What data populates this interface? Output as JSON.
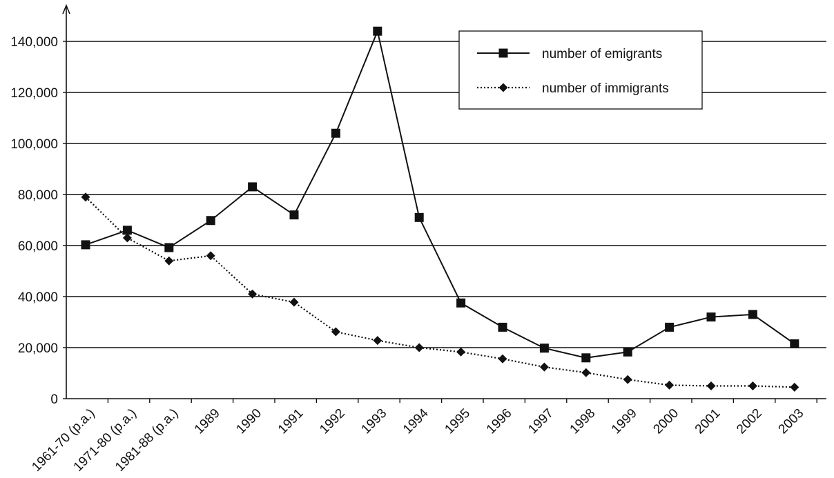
{
  "chart_data": {
    "type": "line",
    "title": "",
    "xlabel": "",
    "ylabel": "",
    "categories": [
      "1961-70 (p.a.)",
      "1971-80 (p.a.)",
      "1981-88 (p.a.)",
      "1989",
      "1990",
      "1991",
      "1992",
      "1993",
      "1994",
      "1995",
      "1996",
      "1997",
      "1998",
      "1999",
      "2000",
      "2001",
      "2002",
      "2003"
    ],
    "ylim": [
      0,
      140000
    ],
    "yticks": [
      0,
      20000,
      40000,
      60000,
      80000,
      100000,
      120000,
      140000
    ],
    "ytick_labels": [
      "0",
      "20,000",
      "40,000",
      "60,000",
      "80,000",
      "100,000",
      "120,000",
      "140,000"
    ],
    "grid": "horizontal",
    "legend_position": "top-right",
    "series": [
      {
        "name": "number of emigrants",
        "style": "solid",
        "marker": "square",
        "color": "#111111",
        "values": [
          60300,
          66000,
          59200,
          69800,
          83000,
          72000,
          104000,
          144000,
          71000,
          37500,
          28000,
          19800,
          16000,
          18300,
          28000,
          32000,
          33000,
          21500
        ]
      },
      {
        "name": "number of immigrants",
        "style": "dotted",
        "marker": "diamond",
        "color": "#111111",
        "values": [
          79000,
          63000,
          54000,
          56000,
          41000,
          37800,
          26200,
          22800,
          20000,
          18300,
          15600,
          12400,
          10200,
          7500,
          5300,
          5000,
          5000,
          4500
        ]
      }
    ]
  }
}
